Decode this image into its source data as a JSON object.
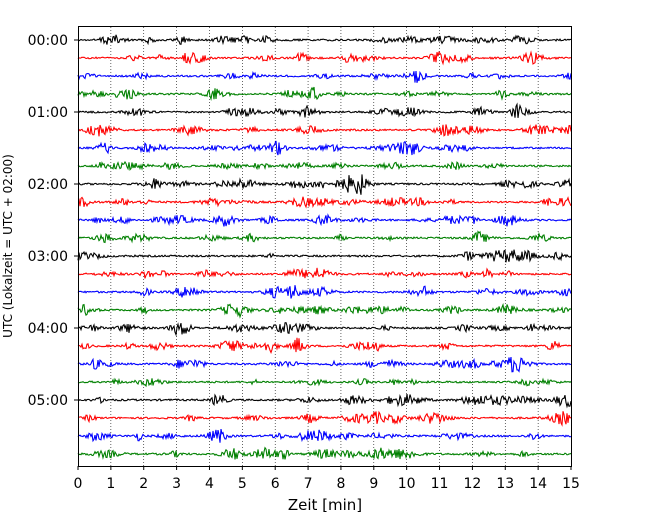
{
  "chart_data": {
    "type": "line",
    "subtype": "helicorder",
    "title": "",
    "xlabel": "Zeit  [min]",
    "ylabel": "UTC (Lokalzeit = UTC + 02:00)",
    "xlim": [
      0,
      15
    ],
    "x_ticks": [
      0,
      1,
      2,
      3,
      4,
      5,
      6,
      7,
      8,
      9,
      10,
      11,
      12,
      13,
      14,
      15
    ],
    "y_tick_labels": [
      "00:00",
      "01:00",
      "02:00",
      "03:00",
      "04:00",
      "05:00"
    ],
    "y_tick_trace_index": [
      0,
      4,
      8,
      12,
      16,
      20
    ],
    "trace_count": 24,
    "minutes_per_trace": 15,
    "trace_colors": [
      "#000000",
      "#ff0000",
      "#0000ff",
      "#008000"
    ],
    "grid": {
      "vertical": true,
      "style": "dotted"
    },
    "legend": "none",
    "trace_amplitude_note": "seismic noise traces; amplitudes not labeled",
    "seed": 7
  }
}
